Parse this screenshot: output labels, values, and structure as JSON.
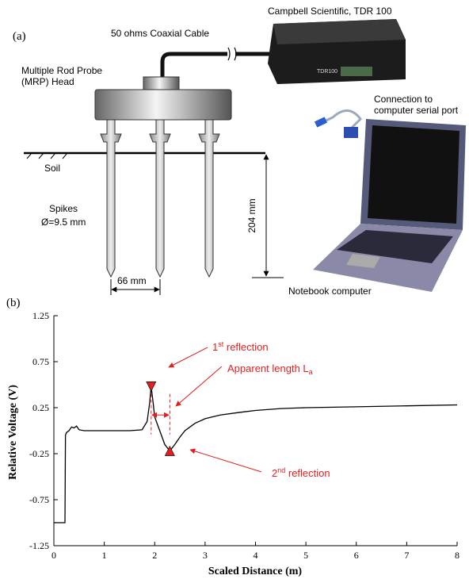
{
  "diagram": {
    "panel_label": "(a)",
    "cable_label": "50 ohms Coaxial Cable",
    "tdr_label": "Campbell Scientific, TDR 100",
    "tdr_box_text": "TDR100",
    "probe_label": [
      "Multiple Rod Probe",
      "(MRP) Head"
    ],
    "connection_label": [
      "Connection to",
      "computer serial port"
    ],
    "soil_label": "Soil",
    "spikes_label": [
      "Spikes",
      "Ø=9.5 mm"
    ],
    "depth_label": "204 mm",
    "spacing_label": "66 mm",
    "computer_label": "Notebook computer"
  },
  "chart_data": {
    "type": "line",
    "panel_label": "(b)",
    "x_label": "Scaled Distance (m)",
    "y_label": "Relative Voltage (V)",
    "xlim": [
      0,
      8
    ],
    "ylim": [
      -1.25,
      1.25
    ],
    "xticks": [
      0,
      1,
      2,
      3,
      4,
      5,
      6,
      7,
      8
    ],
    "yticks": [
      1.25,
      0.75,
      0.25,
      -0.25,
      -0.75,
      -1.25
    ],
    "color": "#000000",
    "x": [
      0,
      0.22,
      0.23,
      0.25,
      0.3,
      0.35,
      0.4,
      0.45,
      0.5,
      0.6,
      1.0,
      1.5,
      1.75,
      1.85,
      1.9,
      1.93,
      1.97,
      2.0,
      2.1,
      2.2,
      2.3,
      2.4,
      2.5,
      2.6,
      2.8,
      3.0,
      3.3,
      3.7,
      4.0,
      4.5,
      5.0,
      6.0,
      7.0,
      8.0
    ],
    "values": [
      -1.0,
      -1.0,
      -0.05,
      -0.02,
      0.0,
      0.04,
      0.03,
      0.05,
      0.01,
      0.0,
      0.0,
      0.0,
      0.01,
      0.1,
      0.3,
      0.48,
      0.3,
      0.15,
      0.0,
      -0.15,
      -0.22,
      -0.15,
      -0.07,
      0.0,
      0.08,
      0.13,
      0.17,
      0.2,
      0.22,
      0.24,
      0.25,
      0.26,
      0.27,
      0.28
    ],
    "markers": {
      "x": [
        1.93,
        2.3
      ],
      "values": [
        0.48,
        -0.22
      ],
      "color": "#e02020"
    },
    "annotations": [
      {
        "prefix": "1",
        "sup": "st",
        "suffix": " reflection"
      },
      {
        "prefix": "Apparent length L",
        "sub": "a"
      },
      {
        "prefix": "2",
        "sup": "nd",
        "suffix": " reflection"
      }
    ],
    "annotation_color": "#e02020"
  }
}
